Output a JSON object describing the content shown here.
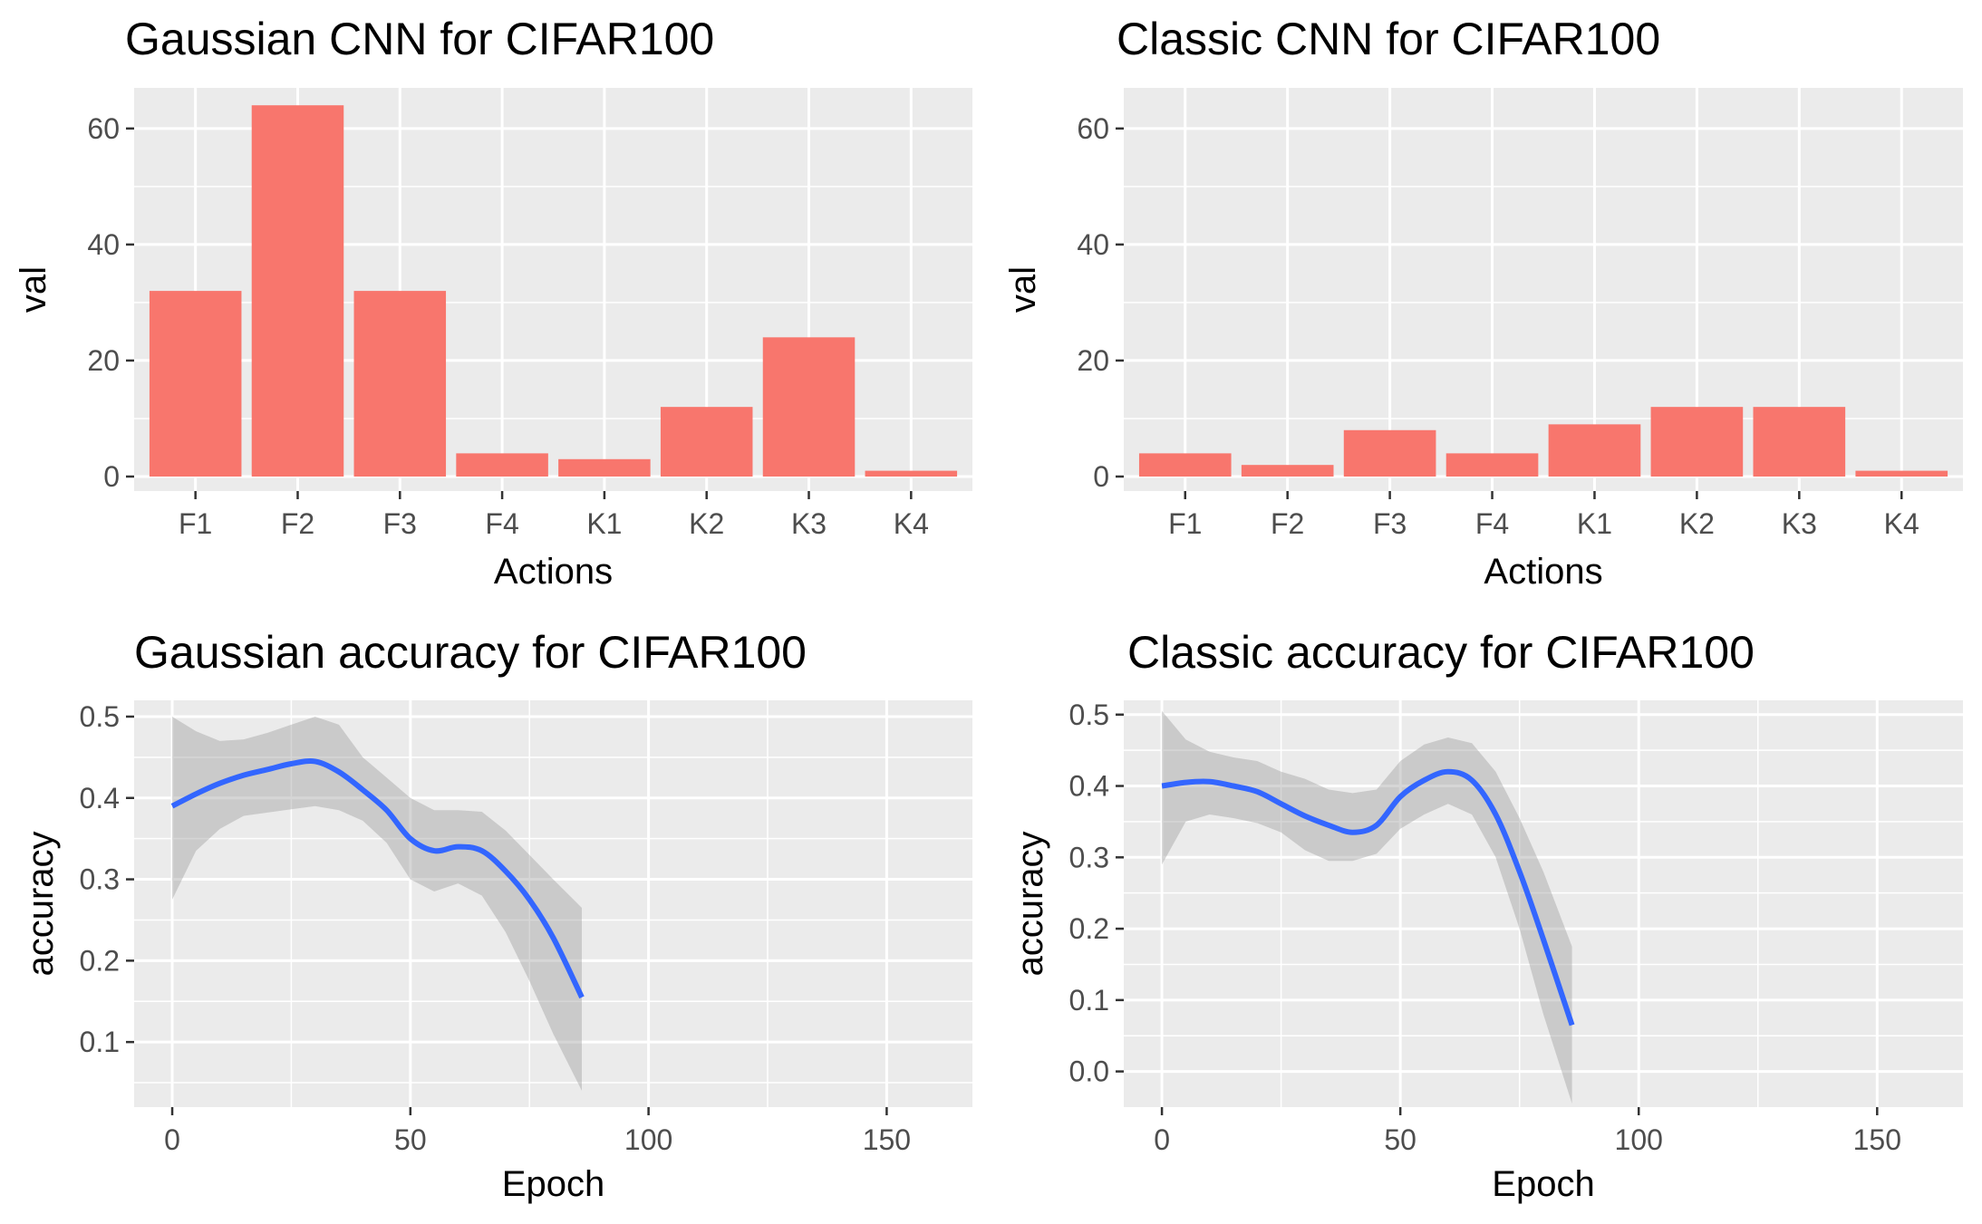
{
  "chart_data": [
    {
      "type": "bar",
      "title": "Gaussian CNN for  CIFAR100",
      "xlabel": "Actions",
      "ylabel": "val",
      "categories": [
        "F1",
        "F2",
        "F3",
        "F4",
        "K1",
        "K2",
        "K3",
        "K4"
      ],
      "values": [
        32,
        64,
        32,
        4,
        3,
        12,
        24,
        1
      ],
      "ylim": [
        -2.5,
        67
      ],
      "yticks": [
        0,
        20,
        40,
        60
      ],
      "bar_color": "#F8766D",
      "panel_bg": "#EBEBEB",
      "grid": true
    },
    {
      "type": "bar",
      "title": "Classic CNN for  CIFAR100",
      "xlabel": "Actions",
      "ylabel": "val",
      "categories": [
        "F1",
        "F2",
        "F3",
        "F4",
        "K1",
        "K2",
        "K3",
        "K4"
      ],
      "values": [
        4,
        2,
        8,
        4,
        9,
        12,
        12,
        1
      ],
      "ylim": [
        -2.5,
        67
      ],
      "yticks": [
        0,
        20,
        40,
        60
      ],
      "bar_color": "#F8766D",
      "panel_bg": "#EBEBEB",
      "grid": true
    },
    {
      "type": "line",
      "title": "Gaussian accuracy for  CIFAR100",
      "xlabel": "Epoch",
      "ylabel": "accuracy",
      "xlim": [
        -8,
        168
      ],
      "ylim": [
        0.02,
        0.52
      ],
      "xticks": [
        0,
        50,
        100,
        150
      ],
      "yticks": [
        0.1,
        0.2,
        0.3,
        0.4,
        0.5
      ],
      "line_color": "#3366FF",
      "band_color": "#999999",
      "grid": true,
      "series": [
        {
          "x": [
            0,
            5,
            10,
            15,
            20,
            25,
            30,
            35,
            40,
            45,
            50,
            55,
            60,
            65,
            70,
            75,
            80,
            86
          ],
          "values": [
            0.39,
            0.405,
            0.418,
            0.428,
            0.435,
            0.442,
            0.445,
            0.432,
            0.41,
            0.385,
            0.35,
            0.335,
            0.34,
            0.335,
            0.31,
            0.275,
            0.228,
            0.155
          ],
          "lower": [
            0.275,
            0.335,
            0.362,
            0.378,
            0.382,
            0.386,
            0.39,
            0.385,
            0.372,
            0.345,
            0.3,
            0.285,
            0.295,
            0.28,
            0.235,
            0.175,
            0.11,
            0.04
          ],
          "upper": [
            0.5,
            0.482,
            0.47,
            0.472,
            0.48,
            0.49,
            0.5,
            0.49,
            0.45,
            0.425,
            0.4,
            0.385,
            0.385,
            0.383,
            0.36,
            0.33,
            0.3,
            0.265
          ]
        }
      ]
    },
    {
      "type": "line",
      "title": "Classic accuracy for  CIFAR100",
      "xlabel": "Epoch",
      "ylabel": "accuracy",
      "xlim": [
        -8,
        168
      ],
      "ylim": [
        -0.05,
        0.52
      ],
      "xticks": [
        0,
        50,
        100,
        150
      ],
      "yticks": [
        0.0,
        0.1,
        0.2,
        0.3,
        0.4,
        0.5
      ],
      "line_color": "#3366FF",
      "band_color": "#999999",
      "grid": true,
      "series": [
        {
          "x": [
            0,
            5,
            10,
            15,
            20,
            25,
            30,
            35,
            40,
            45,
            50,
            55,
            60,
            65,
            70,
            75,
            80,
            86
          ],
          "values": [
            0.4,
            0.405,
            0.406,
            0.4,
            0.392,
            0.375,
            0.358,
            0.345,
            0.335,
            0.345,
            0.385,
            0.408,
            0.42,
            0.408,
            0.36,
            0.28,
            0.185,
            0.065
          ],
          "lower": [
            0.29,
            0.35,
            0.36,
            0.355,
            0.348,
            0.335,
            0.31,
            0.295,
            0.295,
            0.305,
            0.34,
            0.36,
            0.375,
            0.36,
            0.3,
            0.2,
            0.08,
            -0.045
          ],
          "upper": [
            0.505,
            0.465,
            0.448,
            0.44,
            0.435,
            0.42,
            0.41,
            0.395,
            0.39,
            0.395,
            0.435,
            0.458,
            0.468,
            0.46,
            0.42,
            0.355,
            0.28,
            0.175
          ]
        }
      ]
    }
  ]
}
